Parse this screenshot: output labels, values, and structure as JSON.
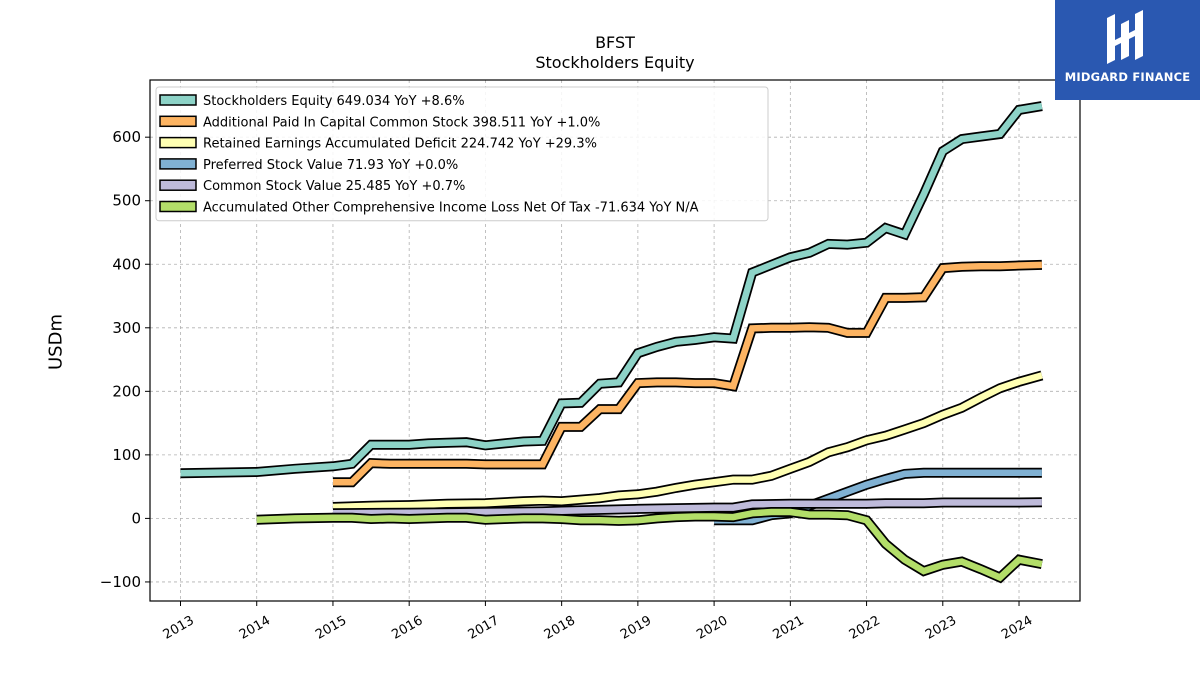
{
  "brand": {
    "name": "MIDGARD FINANCE",
    "logo_icon": "midgard-logo-icon",
    "color": "#2a58b1"
  },
  "chart_data": {
    "type": "line",
    "title": "BFST",
    "subtitle": "Stockholders  Equity",
    "ylabel": "USDm",
    "xlabel": "",
    "xlim": [
      2012.6,
      2024.8
    ],
    "ylim": [
      -130,
      690
    ],
    "yticks": [
      -100,
      0,
      100,
      200,
      300,
      400,
      500,
      600
    ],
    "ytick_labels": [
      "−100",
      "0",
      "100",
      "200",
      "300",
      "400",
      "500",
      "600"
    ],
    "xticks": [
      2013,
      2014,
      2015,
      2016,
      2017,
      2018,
      2019,
      2020,
      2021,
      2022,
      2023,
      2024
    ],
    "xtick_labels": [
      "2013",
      "2014",
      "2015",
      "2016",
      "2017",
      "2018",
      "2019",
      "2020",
      "2021",
      "2022",
      "2023",
      "2024"
    ],
    "grid": true,
    "legend_position": "top-left",
    "series": [
      {
        "name": "Stockholders Equity  649.034 YoY +8.6%",
        "color": "#8dd3c7",
        "points": [
          [
            2013.0,
            71
          ],
          [
            2014.0,
            73
          ],
          [
            2014.5,
            78
          ],
          [
            2015.0,
            82
          ],
          [
            2015.25,
            86
          ],
          [
            2015.5,
            116
          ],
          [
            2015.75,
            116
          ],
          [
            2016.0,
            116
          ],
          [
            2016.25,
            118
          ],
          [
            2016.5,
            119
          ],
          [
            2016.75,
            120
          ],
          [
            2017.0,
            115
          ],
          [
            2017.25,
            118
          ],
          [
            2017.5,
            121
          ],
          [
            2017.75,
            122
          ],
          [
            2018.0,
            181
          ],
          [
            2018.25,
            182
          ],
          [
            2018.5,
            212
          ],
          [
            2018.75,
            214
          ],
          [
            2019.0,
            260
          ],
          [
            2019.25,
            270
          ],
          [
            2019.5,
            278
          ],
          [
            2019.75,
            281
          ],
          [
            2020.0,
            285
          ],
          [
            2020.25,
            283
          ],
          [
            2020.5,
            387
          ],
          [
            2020.75,
            399
          ],
          [
            2021.0,
            411
          ],
          [
            2021.25,
            418
          ],
          [
            2021.5,
            432
          ],
          [
            2021.75,
            431
          ],
          [
            2022.0,
            434
          ],
          [
            2022.25,
            457
          ],
          [
            2022.5,
            447
          ],
          [
            2022.75,
            510
          ],
          [
            2023.0,
            578
          ],
          [
            2023.25,
            597
          ],
          [
            2023.5,
            601
          ],
          [
            2023.75,
            605
          ],
          [
            2024.0,
            643
          ],
          [
            2024.3,
            649
          ]
        ]
      },
      {
        "name": "Additional Paid In Capital Common Stock  398.511 YoY +1.0%",
        "color": "#fdb462",
        "points": [
          [
            2015.0,
            57
          ],
          [
            2015.25,
            57
          ],
          [
            2015.5,
            87
          ],
          [
            2015.75,
            86
          ],
          [
            2016.0,
            86
          ],
          [
            2016.5,
            86
          ],
          [
            2016.75,
            86
          ],
          [
            2017.0,
            85
          ],
          [
            2017.5,
            85
          ],
          [
            2017.75,
            85
          ],
          [
            2018.0,
            144
          ],
          [
            2018.25,
            144
          ],
          [
            2018.5,
            172
          ],
          [
            2018.75,
            172
          ],
          [
            2019.0,
            213
          ],
          [
            2019.25,
            214
          ],
          [
            2019.5,
            214
          ],
          [
            2019.75,
            213
          ],
          [
            2020.0,
            213
          ],
          [
            2020.25,
            208
          ],
          [
            2020.5,
            299
          ],
          [
            2020.75,
            300
          ],
          [
            2021.0,
            300
          ],
          [
            2021.25,
            301
          ],
          [
            2021.5,
            300
          ],
          [
            2021.75,
            292
          ],
          [
            2022.0,
            292
          ],
          [
            2022.25,
            347
          ],
          [
            2022.5,
            347
          ],
          [
            2022.75,
            348
          ],
          [
            2023.0,
            394
          ],
          [
            2023.25,
            396
          ],
          [
            2023.5,
            397
          ],
          [
            2023.75,
            397
          ],
          [
            2024.0,
            398
          ],
          [
            2024.3,
            399
          ]
        ]
      },
      {
        "name": "Retained Earnings Accumulated Deficit  224.742 YoY +29.3%",
        "color": "#ffffb3",
        "points": [
          [
            2015.0,
            18
          ],
          [
            2015.5,
            20
          ],
          [
            2016.0,
            21
          ],
          [
            2016.5,
            23
          ],
          [
            2017.0,
            24
          ],
          [
            2017.5,
            27
          ],
          [
            2017.75,
            28
          ],
          [
            2018.0,
            27
          ],
          [
            2018.5,
            32
          ],
          [
            2018.75,
            36
          ],
          [
            2019.0,
            38
          ],
          [
            2019.25,
            42
          ],
          [
            2019.5,
            48
          ],
          [
            2019.75,
            53
          ],
          [
            2020.0,
            57
          ],
          [
            2020.25,
            61
          ],
          [
            2020.5,
            61
          ],
          [
            2020.75,
            67
          ],
          [
            2021.0,
            78
          ],
          [
            2021.25,
            89
          ],
          [
            2021.5,
            104
          ],
          [
            2021.75,
            112
          ],
          [
            2022.0,
            123
          ],
          [
            2022.25,
            130
          ],
          [
            2022.5,
            140
          ],
          [
            2022.75,
            150
          ],
          [
            2023.0,
            163
          ],
          [
            2023.25,
            174
          ],
          [
            2023.5,
            190
          ],
          [
            2023.75,
            205
          ],
          [
            2024.0,
            215
          ],
          [
            2024.3,
            225
          ]
        ]
      },
      {
        "name": "Preferred Stock Value  71.93 YoY +0.0%",
        "color": "#80b1d3",
        "points": [
          [
            2020.0,
            -3
          ],
          [
            2020.5,
            -3
          ],
          [
            2020.75,
            5
          ],
          [
            2021.0,
            8
          ],
          [
            2021.25,
            20
          ],
          [
            2021.5,
            31
          ],
          [
            2021.75,
            42
          ],
          [
            2022.0,
            53
          ],
          [
            2022.25,
            62
          ],
          [
            2022.5,
            70
          ],
          [
            2022.75,
            72
          ],
          [
            2023.0,
            72
          ],
          [
            2023.5,
            72
          ],
          [
            2024.0,
            72
          ],
          [
            2024.3,
            72
          ]
        ]
      },
      {
        "name": "Common Stock Value  25.485 YoY +0.7%",
        "color": "#bebada",
        "points": [
          [
            2015.0,
            8
          ],
          [
            2016.0,
            9
          ],
          [
            2017.0,
            10
          ],
          [
            2017.75,
            11
          ],
          [
            2018.0,
            12
          ],
          [
            2019.0,
            15
          ],
          [
            2020.0,
            17
          ],
          [
            2020.25,
            17
          ],
          [
            2020.5,
            22
          ],
          [
            2021.0,
            23
          ],
          [
            2022.0,
            23
          ],
          [
            2022.25,
            24
          ],
          [
            2022.5,
            24
          ],
          [
            2022.75,
            24
          ],
          [
            2023.0,
            25
          ],
          [
            2023.5,
            25
          ],
          [
            2024.0,
            25
          ],
          [
            2024.3,
            25.5
          ]
        ]
      },
      {
        "name": "Accumulated Other Comprehensive Income Loss Net Of Tax  -71.634 YoY N/A",
        "color": "#b3de69",
        "points": [
          [
            2014.0,
            -2
          ],
          [
            2014.5,
            0
          ],
          [
            2015.0,
            1
          ],
          [
            2015.25,
            1
          ],
          [
            2015.5,
            -1
          ],
          [
            2015.75,
            0
          ],
          [
            2016.0,
            -1
          ],
          [
            2016.25,
            0
          ],
          [
            2016.5,
            1
          ],
          [
            2016.75,
            1
          ],
          [
            2017.0,
            -2
          ],
          [
            2017.25,
            -1
          ],
          [
            2017.5,
            0
          ],
          [
            2017.75,
            0
          ],
          [
            2018.0,
            -1
          ],
          [
            2018.25,
            -3
          ],
          [
            2018.5,
            -3
          ],
          [
            2018.75,
            -4
          ],
          [
            2019.0,
            -3
          ],
          [
            2019.25,
            0
          ],
          [
            2019.5,
            2
          ],
          [
            2019.75,
            3
          ],
          [
            2020.0,
            3
          ],
          [
            2020.25,
            2
          ],
          [
            2020.5,
            8
          ],
          [
            2020.75,
            10
          ],
          [
            2021.0,
            10
          ],
          [
            2021.25,
            6
          ],
          [
            2021.5,
            6
          ],
          [
            2021.75,
            5
          ],
          [
            2022.0,
            -3
          ],
          [
            2022.25,
            -40
          ],
          [
            2022.5,
            -65
          ],
          [
            2022.75,
            -83
          ],
          [
            2023.0,
            -73
          ],
          [
            2023.25,
            -68
          ],
          [
            2023.5,
            -80
          ],
          [
            2023.75,
            -93
          ],
          [
            2024.0,
            -65
          ],
          [
            2024.3,
            -72
          ]
        ]
      }
    ]
  }
}
